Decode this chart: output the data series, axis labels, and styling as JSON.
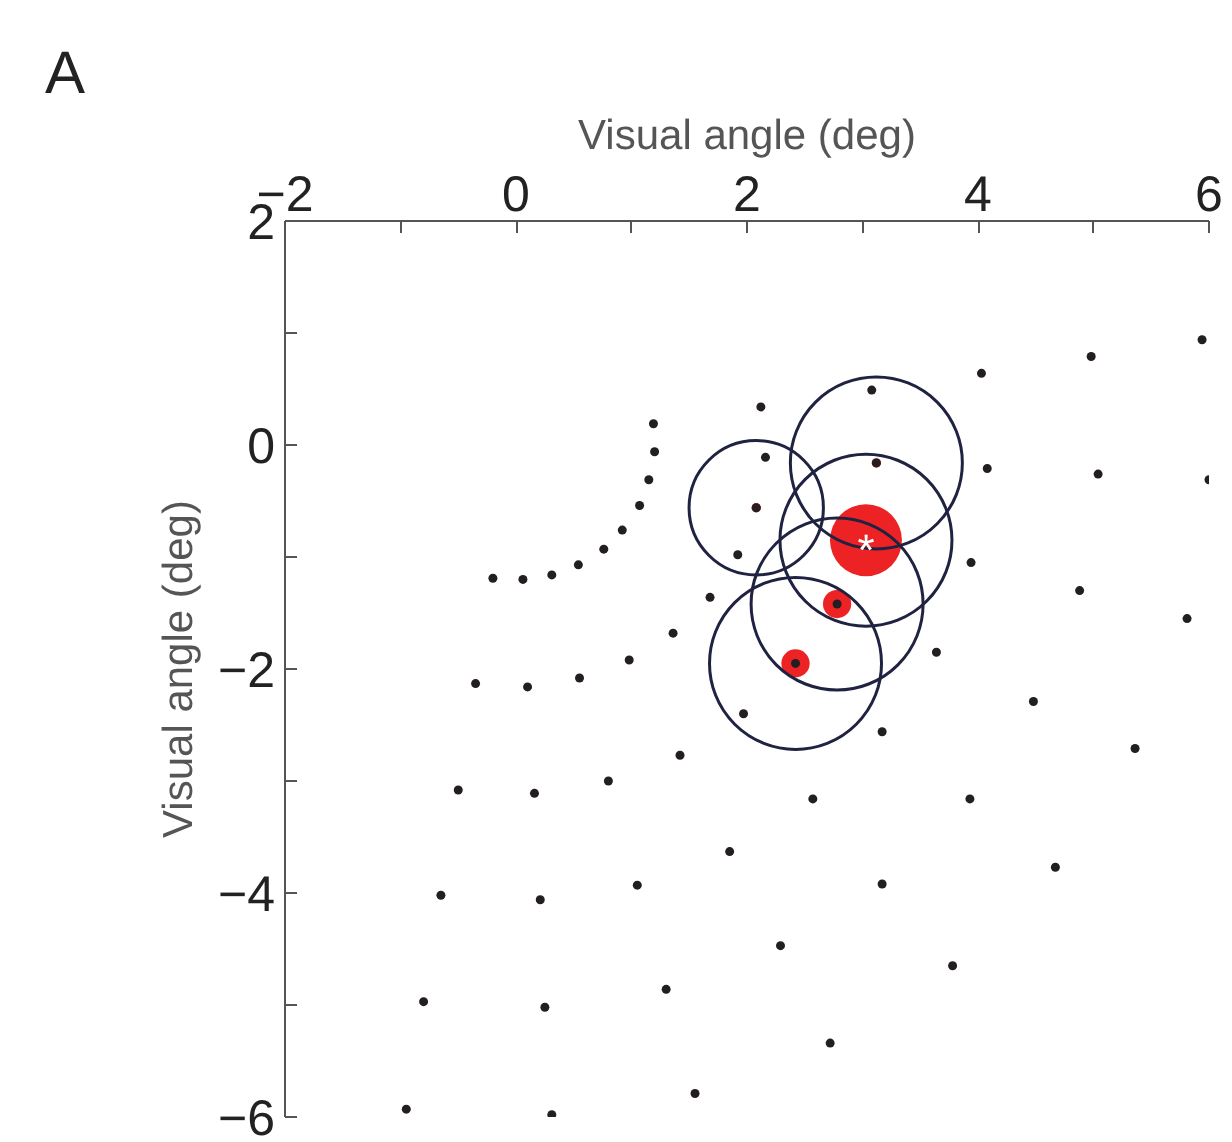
{
  "chart_data": {
    "type": "scatter",
    "xlabel": "Visual angle (deg)",
    "ylabel": "Visual angle (deg)",
    "annotations": [
      "A",
      {
        "text": "*",
        "x": 3.03,
        "y": -0.85
      }
    ],
    "xlim": [
      -2,
      6
    ],
    "ylim": [
      -6,
      2
    ],
    "xticks": [
      {
        "value": -2,
        "label": "−2"
      },
      {
        "value": -1,
        "label": null
      },
      0,
      {
        "value": 1,
        "label": null
      },
      2,
      {
        "value": 3,
        "label": null
      },
      4,
      {
        "value": 5,
        "label": null
      },
      6
    ],
    "yticks": [
      {
        "value": -6,
        "label": "−6"
      },
      {
        "value": -5,
        "label": null
      },
      {
        "value": -4,
        "label": "−4"
      },
      {
        "value": -3,
        "label": null
      },
      {
        "value": -2,
        "label": "−2"
      },
      {
        "value": -1,
        "label": null
      },
      0,
      {
        "value": 1,
        "label": null
      },
      2
    ],
    "grid": false,
    "series": [
      {
        "type": "bubble",
        "color": "#ed2224",
        "x": [
          3.03,
          2.78,
          2.42,
          2.08,
          3.12
        ],
        "values": [
          -0.85,
          -1.42,
          -1.95,
          -0.56,
          -0.16
        ],
        "sizes": [
          0.175,
          0.027,
          0.027,
          0.003,
          0.003
        ]
      },
      {
        "type": "bubble",
        "color": "#1f2341",
        "line_style": "solid",
        "x": [
          2.08,
          3.12,
          3.03,
          2.78,
          2.42
        ],
        "values": [
          -0.56,
          -0.16,
          -0.85,
          -1.42,
          -1.95
        ],
        "sizes": [
          0.61,
          1,
          1,
          1,
          1
        ]
      },
      {
        "color": "#231f20",
        "marker": "circle",
        "x": [
          5.94,
          4.98,
          4.03,
          3.08,
          2.12,
          1.19,
          1.2,
          1.15,
          1.07,
          0.92,
          0.76,
          0.54,
          0.31,
          0.06,
          -0.2,
          2.16,
          2.08,
          3.12,
          4.08,
          5.04,
          6.0,
          1.92,
          3.94,
          4.88,
          5.81,
          1.68,
          2.78,
          2.42,
          1.36,
          0.98,
          0.55,
          0.1,
          -0.35,
          3.64,
          4.48,
          5.36,
          1.97,
          3.17,
          1.42,
          0.8,
          0.16,
          -0.5,
          2.57,
          3.93,
          1.85,
          4.67,
          3.17,
          1.05,
          0.21,
          -0.65,
          2.29,
          3.78,
          1.3,
          0.25,
          -0.8,
          2.72,
          1.55,
          0.31,
          -0.95
        ],
        "values": [
          0.94,
          0.79,
          0.64,
          0.49,
          0.34,
          0.19,
          -0.06,
          -0.31,
          -0.54,
          -0.76,
          -0.93,
          -1.07,
          -1.16,
          -1.2,
          -1.19,
          -0.11,
          -0.56,
          -0.16,
          -0.21,
          -0.26,
          -0.31,
          -0.98,
          -1.05,
          -1.3,
          -1.55,
          -1.36,
          -1.42,
          -1.95,
          -1.68,
          -1.92,
          -2.08,
          -2.16,
          -2.13,
          -1.85,
          -2.29,
          -2.71,
          -2.4,
          -2.56,
          -2.77,
          -3.0,
          -3.11,
          -3.08,
          -3.16,
          -3.16,
          -3.63,
          -3.77,
          -3.92,
          -3.93,
          -4.06,
          -4.02,
          -4.47,
          -4.65,
          -4.86,
          -5.02,
          -4.97,
          -5.34,
          -5.79,
          -5.98,
          -5.93
        ]
      }
    ]
  }
}
